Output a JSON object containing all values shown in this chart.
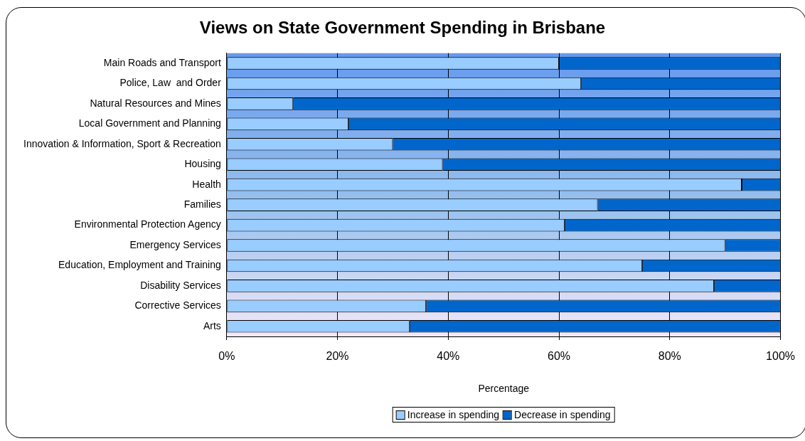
{
  "chart_data": {
    "type": "bar",
    "title": "Views on State Government Spending in Brisbane",
    "xlabel": "Percentage",
    "orientation": "horizontal",
    "stacked": true,
    "categories": [
      "Main Roads and Transport",
      "Police, Law  and Order",
      "Natural Resources and Mines",
      "Local Government and Planning",
      "Innovation & Information, Sport & Recreation",
      "Housing",
      "Health",
      "Families",
      "Environmental Protection Agency",
      "Emergency Services",
      "Education, Employment and Training",
      "Disability Services",
      "Corrective Services",
      "Arts"
    ],
    "series": [
      {
        "name": "Increase in spending",
        "color": "#99ccff",
        "values": [
          60,
          64,
          12,
          22,
          30,
          39,
          93,
          67,
          61,
          90,
          75,
          88,
          36,
          33
        ]
      },
      {
        "name": "Decrease in spending",
        "color": "#0066cc",
        "values": [
          40,
          36,
          88,
          78,
          70,
          61,
          7,
          33,
          39,
          10,
          25,
          12,
          64,
          67
        ]
      }
    ],
    "xlim": [
      0,
      100
    ],
    "xticks": [
      {
        "value": 0,
        "label": "0%"
      },
      {
        "value": 20,
        "label": "20%"
      },
      {
        "value": 40,
        "label": "40%"
      },
      {
        "value": 60,
        "label": "60%"
      },
      {
        "value": 80,
        "label": "80%"
      },
      {
        "value": 100,
        "label": "100%"
      }
    ],
    "grid": "x",
    "legend": "bottom"
  }
}
